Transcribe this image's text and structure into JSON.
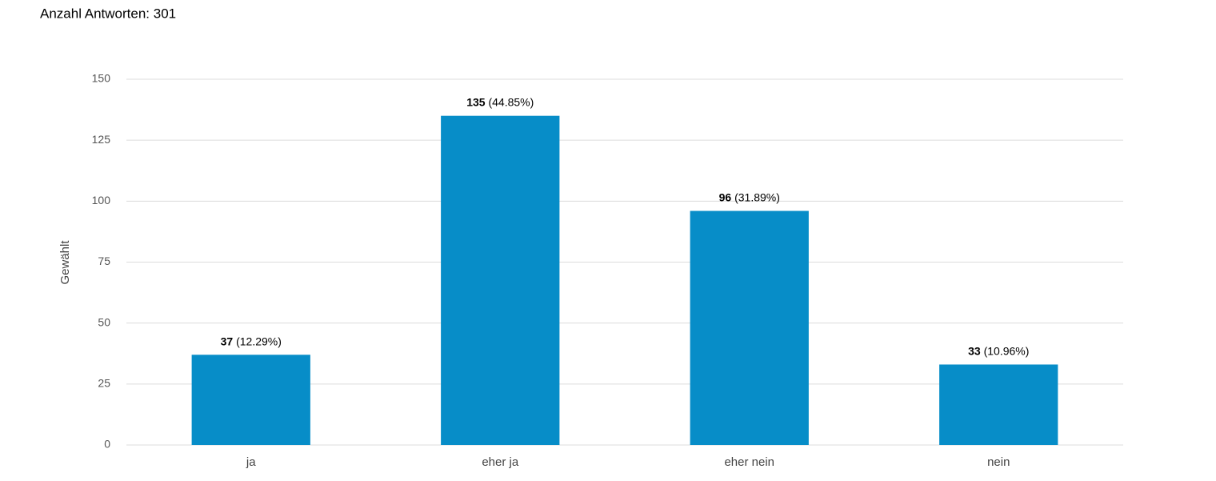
{
  "chart_data": {
    "type": "bar",
    "title": "Anzahl Antworten: 301",
    "ylabel": "Gewählt",
    "categories": [
      "ja",
      "eher ja",
      "eher nein",
      "nein"
    ],
    "values": [
      37,
      135,
      96,
      33
    ],
    "percent_labels": [
      "(12.29%)",
      "(44.85%)",
      "(31.89%)",
      "(10.96%)"
    ],
    "color": "#078dc8",
    "ylim": [
      0,
      150
    ],
    "yticks": [
      0,
      25,
      50,
      75,
      100,
      125,
      150
    ],
    "grid": true
  }
}
